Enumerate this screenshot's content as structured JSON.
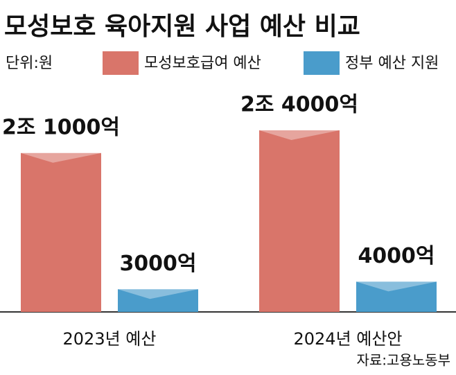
{
  "chart_data": {
    "type": "bar",
    "title": "모성보호 육아지원 사업 예산 비교",
    "unit": "단위:원",
    "source": "자료:고용노동부",
    "categories": [
      "2023년 예산",
      "2024년 예산안"
    ],
    "series": [
      {
        "name": "모성보호급여 예산",
        "color": "#d9756a",
        "values": [
          2100000000000,
          2400000000000
        ],
        "value_labels": [
          "2조 1000억",
          "2조 4000억"
        ]
      },
      {
        "name": "정부 예산 지원",
        "color": "#4a9ccb",
        "values": [
          300000000000,
          400000000000
        ],
        "value_labels": [
          "3000억",
          "4000억"
        ]
      }
    ]
  }
}
